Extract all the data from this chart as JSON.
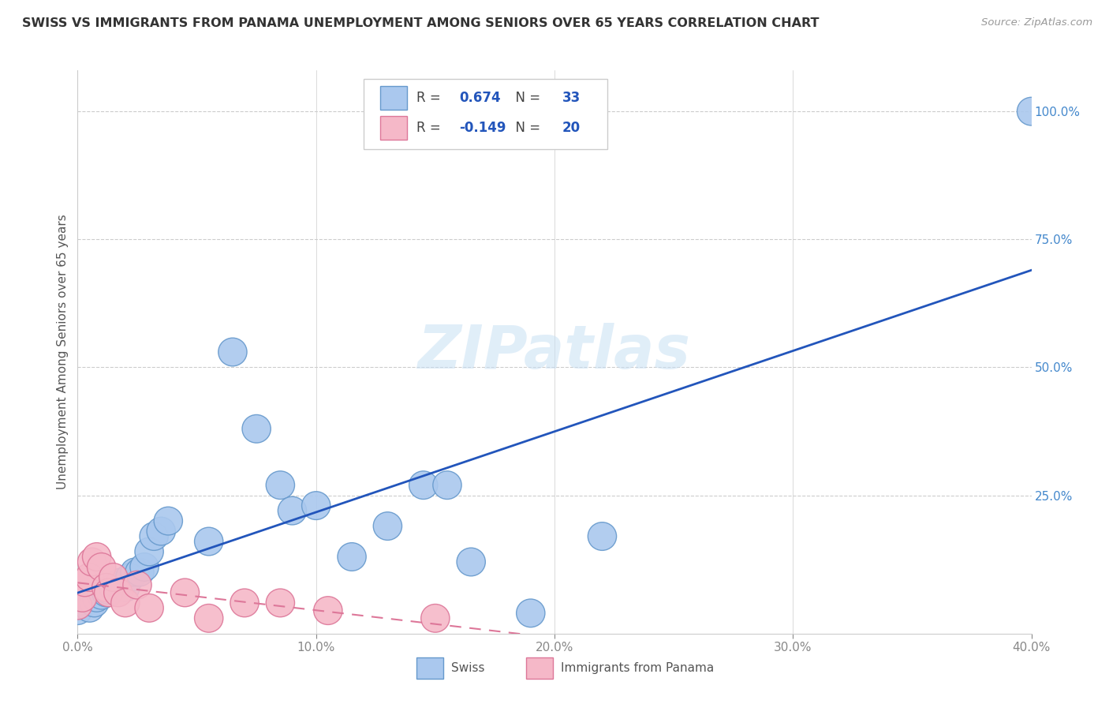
{
  "title": "SWISS VS IMMIGRANTS FROM PANAMA UNEMPLOYMENT AMONG SENIORS OVER 65 YEARS CORRELATION CHART",
  "source": "Source: ZipAtlas.com",
  "ylabel": "Unemployment Among Seniors over 65 years",
  "xlim": [
    0.0,
    0.4
  ],
  "ylim": [
    -0.02,
    1.08
  ],
  "ylim_data": [
    0.0,
    1.05
  ],
  "xtick_labels": [
    "0.0%",
    "10.0%",
    "20.0%",
    "30.0%",
    "40.0%"
  ],
  "xtick_values": [
    0.0,
    0.1,
    0.2,
    0.3,
    0.4
  ],
  "ytick_right_labels": [
    "100.0%",
    "75.0%",
    "50.0%",
    "25.0%"
  ],
  "ytick_right_values": [
    1.0,
    0.75,
    0.5,
    0.25
  ],
  "swiss_color": "#aac8ee",
  "swiss_edge_color": "#6699cc",
  "panama_color": "#f5b8c8",
  "panama_edge_color": "#dd7799",
  "trendline_swiss_color": "#2255bb",
  "trendline_panama_color": "#dd7799",
  "swiss_R": 0.674,
  "swiss_N": 33,
  "panama_R": -0.149,
  "panama_N": 20,
  "watermark": "ZIPatlas",
  "swiss_x": [
    0.0,
    0.005,
    0.007,
    0.008,
    0.01,
    0.012,
    0.013,
    0.015,
    0.017,
    0.018,
    0.02,
    0.022,
    0.024,
    0.026,
    0.028,
    0.03,
    0.032,
    0.035,
    0.038,
    0.055,
    0.065,
    0.075,
    0.085,
    0.09,
    0.1,
    0.115,
    0.13,
    0.145,
    0.155,
    0.165,
    0.19,
    0.22,
    0.4
  ],
  "swiss_y": [
    0.025,
    0.03,
    0.04,
    0.05,
    0.055,
    0.06,
    0.065,
    0.07,
    0.075,
    0.08,
    0.07,
    0.09,
    0.1,
    0.1,
    0.11,
    0.14,
    0.17,
    0.18,
    0.2,
    0.16,
    0.53,
    0.38,
    0.27,
    0.22,
    0.23,
    0.13,
    0.19,
    0.27,
    0.27,
    0.12,
    0.02,
    0.17,
    1.0
  ],
  "panama_x": [
    0.0,
    0.002,
    0.003,
    0.005,
    0.006,
    0.008,
    0.01,
    0.012,
    0.013,
    0.015,
    0.017,
    0.02,
    0.025,
    0.03,
    0.045,
    0.055,
    0.07,
    0.085,
    0.105,
    0.15
  ],
  "panama_y": [
    0.035,
    0.05,
    0.08,
    0.09,
    0.12,
    0.13,
    0.11,
    0.07,
    0.06,
    0.09,
    0.06,
    0.04,
    0.075,
    0.03,
    0.06,
    0.01,
    0.04,
    0.04,
    0.025,
    0.01
  ]
}
